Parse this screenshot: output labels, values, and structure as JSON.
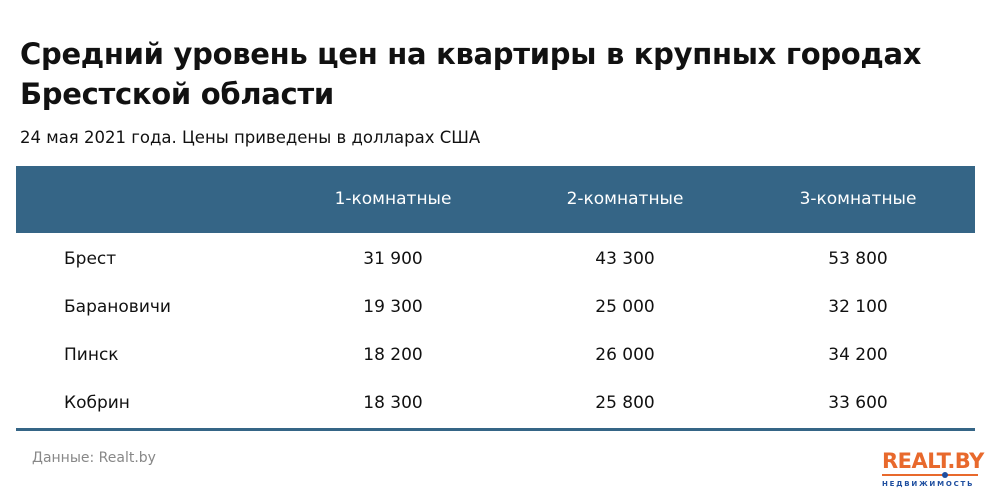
{
  "title": "Средний уровень цен на квартиры в крупных городах Брестской области",
  "subtitle": "24 мая 2021 года. Цены приведены в долларах США",
  "table": {
    "headers": [
      "",
      "1-комнатные",
      "2-комнатные",
      "3-комнатные"
    ],
    "rows": [
      {
        "city": "Брест",
        "values": [
          "31 900",
          "43 300",
          "53 800"
        ]
      },
      {
        "city": "Барановичи",
        "values": [
          "19 300",
          "25 000",
          "32 100"
        ]
      },
      {
        "city": "Пинск",
        "values": [
          "18 200",
          "26 000",
          "34 200"
        ]
      },
      {
        "city": "Кобрин",
        "values": [
          "18 300",
          "25 800",
          "33 600"
        ]
      }
    ]
  },
  "source": "Данные: Realt.by",
  "logo": {
    "text": "REALT.BY",
    "tagline": "НЕДВИЖИМОСТЬ"
  },
  "colors": {
    "header": "#356586",
    "logo_orange": "#e8692c",
    "logo_blue": "#1f4fa0"
  }
}
